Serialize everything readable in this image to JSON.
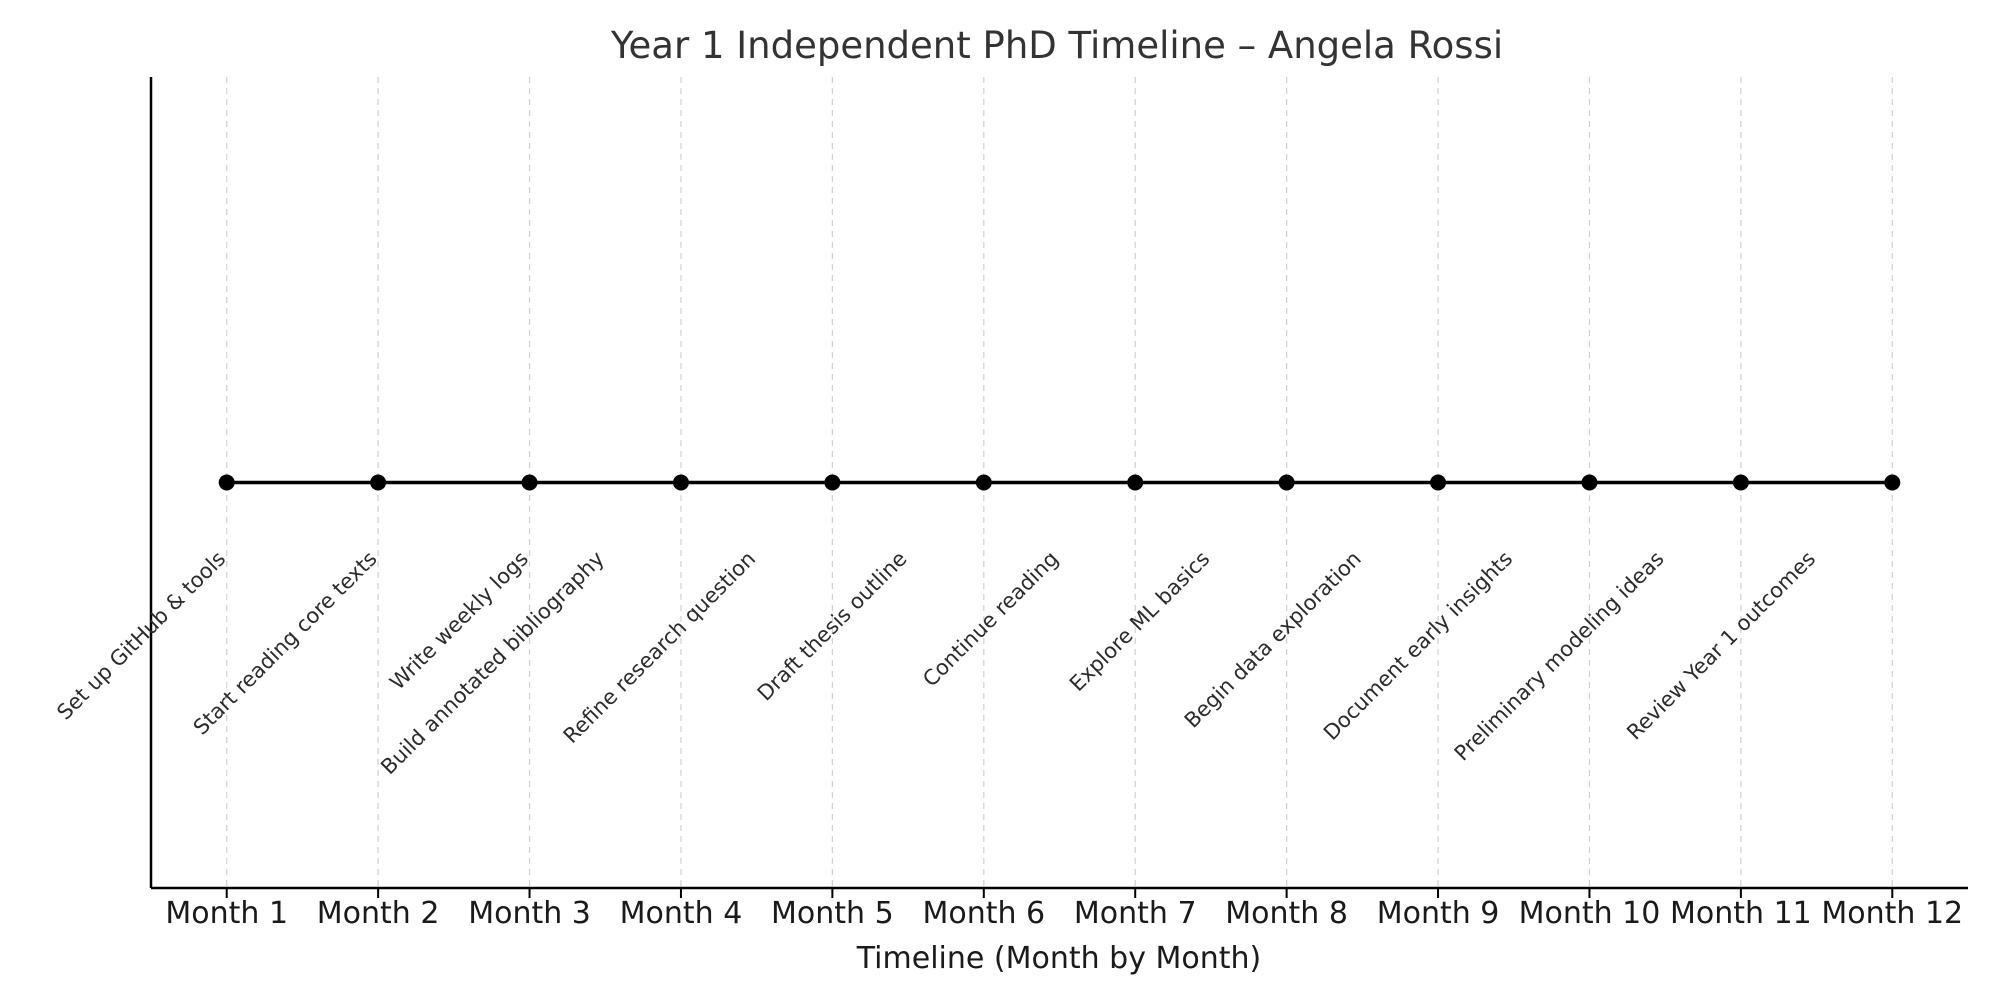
{
  "chart_data": {
    "type": "scatter",
    "title": "Year 1 Independent PhD Timeline – Angela Rossi",
    "xlabel": "Timeline (Month by Month)",
    "ylabel": "",
    "categories": [
      "Month 1",
      "Month 2",
      "Month 3",
      "Month 4",
      "Month 5",
      "Month 6",
      "Month 7",
      "Month 8",
      "Month 9",
      "Month 10",
      "Month 11",
      "Month 12"
    ],
    "x": [
      1,
      2,
      3,
      4,
      5,
      6,
      7,
      8,
      9,
      10,
      11,
      12
    ],
    "y": [
      0,
      0,
      0,
      0,
      0,
      0,
      0,
      0,
      0,
      0,
      0,
      0
    ],
    "annotations": [
      {
        "x": 1.0,
        "text": "Set up GitHub & tools"
      },
      {
        "x": 2.0,
        "text": "Start reading core texts"
      },
      {
        "x": 3.0,
        "text": "Write weekly logs"
      },
      {
        "x": 3.5,
        "text": "Build annotated bibliography"
      },
      {
        "x": 4.5,
        "text": "Refine research question"
      },
      {
        "x": 5.5,
        "text": "Draft thesis outline"
      },
      {
        "x": 6.5,
        "text": "Continue reading"
      },
      {
        "x": 7.5,
        "text": "Explore ML basics"
      },
      {
        "x": 8.5,
        "text": "Begin data exploration"
      },
      {
        "x": 9.5,
        "text": "Document early insights"
      },
      {
        "x": 10.5,
        "text": "Preliminary modeling ideas"
      },
      {
        "x": 11.5,
        "text": "Review Year 1 outcomes"
      }
    ],
    "xlim": [
      0.5,
      12.5
    ],
    "ylim": [
      -1,
      1
    ],
    "grid": "vertical dashed",
    "colors": {
      "line": "#000000",
      "marker": "#000000",
      "grid": "#d0d0d0",
      "text": "#333333"
    }
  }
}
